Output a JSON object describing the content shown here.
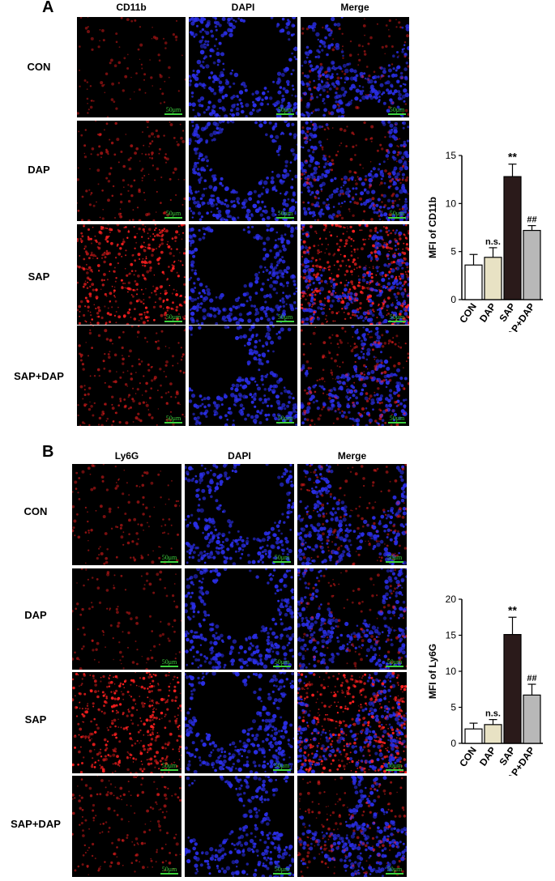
{
  "panels": [
    {
      "letter": "A",
      "columns": [
        "CD11b",
        "DAPI",
        "Merge"
      ],
      "rows": [
        "CON",
        "DAP",
        "SAP",
        "SAP+DAP"
      ],
      "scale_label": "50μm",
      "red_intensity": [
        0.15,
        0.3,
        1.0,
        0.4
      ]
    },
    {
      "letter": "B",
      "columns": [
        "Ly6G",
        "DAPI",
        "Merge"
      ],
      "rows": [
        "CON",
        "DAP",
        "SAP",
        "SAP+DAP"
      ],
      "scale_label": "50μm",
      "red_intensity": [
        0.25,
        0.2,
        1.0,
        0.35
      ]
    }
  ],
  "colors": {
    "dapi_blue": "#2a2ee6",
    "red_stain": "#ff2020",
    "scale_green": "#3dd13d",
    "bar_con": "#ffffff",
    "bar_dap": "#e8e2c4",
    "bar_sap": "#2a1a1a",
    "bar_sapdap": "#b8b8b8"
  },
  "chart_data": [
    {
      "type": "bar",
      "categories": [
        "CON",
        "DAP",
        "SAP",
        "SAP+DAP"
      ],
      "values": [
        3.6,
        4.4,
        12.8,
        7.2
      ],
      "errors": [
        1.1,
        1.0,
        1.3,
        0.5
      ],
      "annotations": [
        "",
        "n.s.",
        "**",
        "##"
      ],
      "ylabel": "MFI of CD11b",
      "ylim": [
        0,
        15
      ],
      "yticks": [
        0,
        5,
        10,
        15
      ]
    },
    {
      "type": "bar",
      "categories": [
        "CON",
        "DAP",
        "SAP",
        "SAP+DAP"
      ],
      "values": [
        2.0,
        2.6,
        15.1,
        6.7
      ],
      "errors": [
        0.8,
        0.7,
        2.4,
        1.5
      ],
      "annotations": [
        "",
        "n.s.",
        "**",
        "##"
      ],
      "ylabel": "MFI of Ly6G",
      "ylim": [
        0,
        20
      ],
      "yticks": [
        0,
        5,
        10,
        15,
        20
      ]
    }
  ]
}
